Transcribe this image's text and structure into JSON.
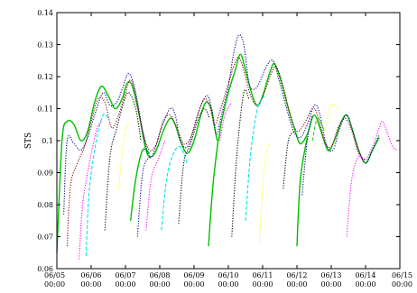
{
  "chart_data": {
    "type": "line",
    "title": "",
    "xlabel": "",
    "ylabel": "STS",
    "ylim": [
      0.06,
      0.14
    ],
    "yticks": [
      "0.06",
      "0.07",
      "0.08",
      "0.09",
      "0.1",
      "0.11",
      "0.12",
      "0.13",
      "0.14"
    ],
    "xlim": [
      "06/05 00:00",
      "06/15 00:00"
    ],
    "xticks": [
      {
        "date": "06/05",
        "time": "00:00"
      },
      {
        "date": "06/06",
        "time": "00:00"
      },
      {
        "date": "06/07",
        "time": "00:00"
      },
      {
        "date": "06/08",
        "time": "00:00"
      },
      {
        "date": "06/09",
        "time": "00:00"
      },
      {
        "date": "06/10",
        "time": "00:00"
      },
      {
        "date": "06/11",
        "time": "00:00"
      },
      {
        "date": "06/12",
        "time": "00:00"
      },
      {
        "date": "06/13",
        "time": "00:00"
      },
      {
        "date": "06/14",
        "time": "00:00"
      },
      {
        "date": "06/15",
        "time": "00:00"
      }
    ],
    "grid": false,
    "legend": "none",
    "series": [
      {
        "color": "#00c000",
        "dash": "solid",
        "points": [
          [
            0.0,
            0.065
          ],
          [
            0.15,
            0.1
          ],
          [
            0.3,
            0.106
          ],
          [
            0.5,
            0.105
          ],
          [
            0.7,
            0.1
          ],
          [
            0.9,
            0.103
          ],
          [
            1.1,
            0.112
          ],
          [
            1.3,
            0.117
          ],
          [
            1.5,
            0.114
          ],
          [
            1.7,
            0.11
          ],
          [
            1.9,
            0.113
          ],
          [
            2.05,
            0.118
          ],
          [
            2.2,
            0.117
          ],
          [
            2.4,
            0.108
          ],
          [
            2.6,
            0.097
          ],
          [
            2.75,
            0.095
          ],
          [
            2.9,
            0.097
          ],
          [
            3.1,
            0.103
          ],
          [
            3.3,
            0.107
          ],
          [
            3.45,
            0.105
          ],
          [
            3.6,
            0.1
          ],
          [
            3.8,
            0.096
          ],
          [
            4.0,
            0.1
          ],
          [
            4.2,
            0.108
          ],
          [
            4.35,
            0.112
          ],
          [
            4.5,
            0.11
          ],
          [
            4.6,
            0.104
          ],
          [
            4.7,
            0.1
          ],
          [
            4.8,
            0.106
          ],
          [
            5.0,
            0.115
          ],
          [
            5.2,
            0.122
          ],
          [
            5.35,
            0.127
          ],
          [
            5.5,
            0.122
          ],
          [
            5.7,
            0.114
          ],
          [
            5.85,
            0.111
          ],
          [
            6.0,
            0.114
          ],
          [
            6.2,
            0.121
          ],
          [
            6.35,
            0.124
          ],
          [
            6.55,
            0.118
          ],
          [
            6.75,
            0.11
          ],
          [
            6.95,
            0.103
          ],
          [
            7.1,
            0.099
          ],
          [
            7.3,
            0.102
          ],
          [
            7.5,
            0.108
          ],
          [
            7.7,
            0.103
          ],
          [
            7.9,
            0.097
          ],
          [
            8.05,
            0.099
          ],
          [
            8.3,
            0.106
          ],
          [
            8.45,
            0.108
          ],
          [
            8.6,
            0.104
          ],
          [
            8.8,
            0.097
          ],
          [
            9.0,
            0.093
          ],
          [
            9.2,
            0.097
          ],
          [
            9.4,
            0.101
          ]
        ]
      },
      {
        "color": "#00c000",
        "dash": "solid",
        "points": [
          [
            2.15,
            0.075
          ],
          [
            2.3,
            0.088
          ],
          [
            2.5,
            0.097
          ],
          [
            2.7,
            0.096
          ]
        ]
      },
      {
        "color": "#00c000",
        "dash": "solid",
        "points": [
          [
            4.42,
            0.067
          ],
          [
            4.55,
            0.086
          ],
          [
            4.7,
            0.1
          ]
        ]
      },
      {
        "color": "#00c000",
        "dash": "solid",
        "points": [
          [
            7.0,
            0.067
          ],
          [
            7.1,
            0.088
          ],
          [
            7.3,
            0.101
          ]
        ]
      },
      {
        "color": "#00008b",
        "dash": "dotted",
        "points": [
          [
            0.2,
            0.077
          ],
          [
            0.3,
            0.1
          ],
          [
            0.5,
            0.099
          ],
          [
            0.7,
            0.097
          ],
          [
            0.9,
            0.101
          ],
          [
            1.1,
            0.108
          ],
          [
            1.35,
            0.115
          ],
          [
            1.55,
            0.111
          ],
          [
            1.75,
            0.112
          ],
          [
            1.9,
            0.116
          ],
          [
            2.1,
            0.121
          ],
          [
            2.3,
            0.115
          ],
          [
            2.5,
            0.103
          ],
          [
            2.7,
            0.095
          ],
          [
            2.85,
            0.097
          ],
          [
            3.05,
            0.104
          ],
          [
            3.3,
            0.11
          ],
          [
            3.45,
            0.108
          ],
          [
            3.6,
            0.1
          ],
          [
            3.8,
            0.098
          ],
          [
            4.0,
            0.104
          ],
          [
            4.2,
            0.111
          ],
          [
            4.4,
            0.114
          ],
          [
            4.55,
            0.108
          ],
          [
            4.65,
            0.102
          ],
          [
            4.8,
            0.108
          ],
          [
            5.0,
            0.117
          ],
          [
            5.15,
            0.127
          ],
          [
            5.3,
            0.133
          ],
          [
            5.45,
            0.13
          ],
          [
            5.6,
            0.118
          ],
          [
            5.75,
            0.116
          ],
          [
            5.9,
            0.118
          ],
          [
            6.1,
            0.123
          ],
          [
            6.3,
            0.125
          ],
          [
            6.5,
            0.118
          ],
          [
            6.7,
            0.11
          ],
          [
            6.9,
            0.103
          ],
          [
            7.1,
            0.101
          ],
          [
            7.3,
            0.105
          ],
          [
            7.5,
            0.111
          ],
          [
            7.65,
            0.109
          ],
          [
            7.85,
            0.099
          ],
          [
            8.05,
            0.097
          ],
          [
            8.25,
            0.104
          ],
          [
            8.45,
            0.108
          ],
          [
            8.6,
            0.104
          ],
          [
            8.8,
            0.097
          ],
          [
            9.0,
            0.093
          ],
          [
            9.2,
            0.097
          ],
          [
            9.4,
            0.102
          ]
        ]
      },
      {
        "color": "#00008b",
        "dash": "dotted",
        "points": [
          [
            2.35,
            0.07
          ],
          [
            2.5,
            0.09
          ],
          [
            2.7,
            0.095
          ]
        ]
      },
      {
        "color": "#00008b",
        "dash": "dotted",
        "points": [
          [
            7.15,
            0.083
          ],
          [
            7.3,
            0.1
          ],
          [
            7.45,
            0.108
          ]
        ]
      },
      {
        "color": "#8b0000",
        "dash": "dotted",
        "points": [
          [
            0.3,
            0.067
          ],
          [
            0.4,
            0.086
          ],
          [
            0.6,
            0.093
          ],
          [
            0.8,
            0.098
          ],
          [
            1.0,
            0.106
          ],
          [
            1.2,
            0.113
          ],
          [
            1.4,
            0.112
          ],
          [
            1.6,
            0.104
          ],
          [
            1.8,
            0.108
          ],
          [
            2.0,
            0.115
          ],
          [
            2.15,
            0.119
          ],
          [
            2.3,
            0.114
          ],
          [
            2.5,
            0.103
          ],
          [
            2.7,
            0.097
          ],
          [
            2.9,
            0.099
          ],
          [
            3.1,
            0.106
          ],
          [
            3.3,
            0.108
          ],
          [
            3.5,
            0.104
          ],
          [
            3.7,
            0.099
          ],
          [
            3.9,
            0.101
          ],
          [
            4.1,
            0.108
          ],
          [
            4.3,
            0.113
          ],
          [
            4.45,
            0.111
          ],
          [
            4.6,
            0.105
          ],
          [
            4.75,
            0.109
          ],
          [
            4.95,
            0.116
          ],
          [
            5.15,
            0.123
          ],
          [
            5.3,
            0.126
          ],
          [
            5.45,
            0.122
          ],
          [
            5.65,
            0.114
          ],
          [
            5.85,
            0.111
          ],
          [
            6.05,
            0.115
          ],
          [
            6.25,
            0.121
          ],
          [
            6.4,
            0.123
          ],
          [
            6.6,
            0.117
          ],
          [
            6.8,
            0.108
          ],
          [
            7.0,
            0.103
          ],
          [
            7.2,
            0.105
          ],
          [
            7.45,
            0.11
          ],
          [
            7.6,
            0.108
          ],
          [
            7.8,
            0.1
          ],
          [
            8.0,
            0.098
          ],
          [
            8.2,
            0.104
          ],
          [
            8.4,
            0.107
          ],
          [
            8.6,
            0.103
          ],
          [
            8.8,
            0.096
          ],
          [
            9.0,
            0.094
          ]
        ]
      },
      {
        "color": "#000000",
        "dash": "dotted",
        "points": [
          [
            1.4,
            0.072
          ],
          [
            1.55,
            0.095
          ],
          [
            1.75,
            0.104
          ],
          [
            1.95,
            0.112
          ],
          [
            2.1,
            0.115
          ],
          [
            2.3,
            0.11
          ],
          [
            2.45,
            0.1
          ]
        ]
      },
      {
        "color": "#000000",
        "dash": "dotted",
        "points": [
          [
            3.55,
            0.074
          ],
          [
            3.7,
            0.093
          ],
          [
            3.9,
            0.099
          ],
          [
            4.1,
            0.106
          ],
          [
            4.3,
            0.11
          ],
          [
            4.45,
            0.107
          ]
        ]
      },
      {
        "color": "#000000",
        "dash": "dotted",
        "points": [
          [
            5.1,
            0.07
          ],
          [
            5.25,
            0.096
          ],
          [
            5.45,
            0.115
          ],
          [
            5.6,
            0.113
          ]
        ]
      },
      {
        "color": "#000000",
        "dash": "dotted",
        "points": [
          [
            6.6,
            0.085
          ],
          [
            6.75,
            0.1
          ],
          [
            6.95,
            0.103
          ]
        ]
      },
      {
        "color": "#00e5ee",
        "dash": "dashed",
        "points": [
          [
            0.85,
            0.064
          ],
          [
            0.95,
            0.085
          ],
          [
            1.15,
            0.1
          ],
          [
            1.35,
            0.108
          ],
          [
            1.5,
            0.107
          ]
        ]
      },
      {
        "color": "#00e5ee",
        "dash": "dashed",
        "points": [
          [
            3.05,
            0.072
          ],
          [
            3.2,
            0.088
          ],
          [
            3.4,
            0.096
          ],
          [
            3.6,
            0.098
          ],
          [
            3.8,
            0.093
          ]
        ]
      },
      {
        "color": "#00e5ee",
        "dash": "dashed",
        "points": [
          [
            5.5,
            0.075
          ],
          [
            5.65,
            0.096
          ],
          [
            5.85,
            0.11
          ],
          [
            6.05,
            0.114
          ]
        ]
      },
      {
        "color": "#ffff00",
        "dash": "dotted",
        "points": [
          [
            1.8,
            0.085
          ],
          [
            1.95,
            0.1
          ],
          [
            2.1,
            0.106
          ]
        ]
      },
      {
        "color": "#ffff00",
        "dash": "dotted",
        "points": [
          [
            5.9,
            0.068
          ],
          [
            6.05,
            0.092
          ],
          [
            6.2,
            0.1
          ]
        ]
      },
      {
        "color": "#ffff00",
        "dash": "dotted",
        "points": [
          [
            7.8,
            0.103
          ],
          [
            8.0,
            0.111
          ],
          [
            8.2,
            0.11
          ]
        ]
      },
      {
        "color": "#ff00ff",
        "dash": "dotted",
        "points": [
          [
            0.65,
            0.063
          ],
          [
            0.75,
            0.08
          ],
          [
            0.95,
            0.093
          ],
          [
            1.15,
            0.103
          ],
          [
            1.3,
            0.106
          ]
        ]
      },
      {
        "color": "#ff00ff",
        "dash": "dotted",
        "points": [
          [
            2.6,
            0.072
          ],
          [
            2.75,
            0.088
          ],
          [
            2.95,
            0.094
          ],
          [
            3.15,
            0.1
          ]
        ]
      },
      {
        "color": "#ff00ff",
        "dash": "dotted",
        "points": [
          [
            4.75,
            0.1
          ],
          [
            4.9,
            0.108
          ],
          [
            5.1,
            0.112
          ]
        ]
      },
      {
        "color": "#ff00ff",
        "dash": "dotted",
        "points": [
          [
            8.45,
            0.07
          ],
          [
            8.6,
            0.088
          ],
          [
            8.8,
            0.095
          ],
          [
            9.0,
            0.094
          ],
          [
            9.2,
            0.098
          ],
          [
            9.4,
            0.104
          ],
          [
            9.5,
            0.106
          ],
          [
            9.65,
            0.102
          ],
          [
            9.8,
            0.098
          ],
          [
            9.95,
            0.097
          ]
        ]
      },
      {
        "color": "#32cd32",
        "dash": "dashed",
        "points": [
          [
            7.45,
            0.1
          ],
          [
            7.6,
            0.107
          ],
          [
            7.8,
            0.103
          ]
        ]
      }
    ]
  }
}
